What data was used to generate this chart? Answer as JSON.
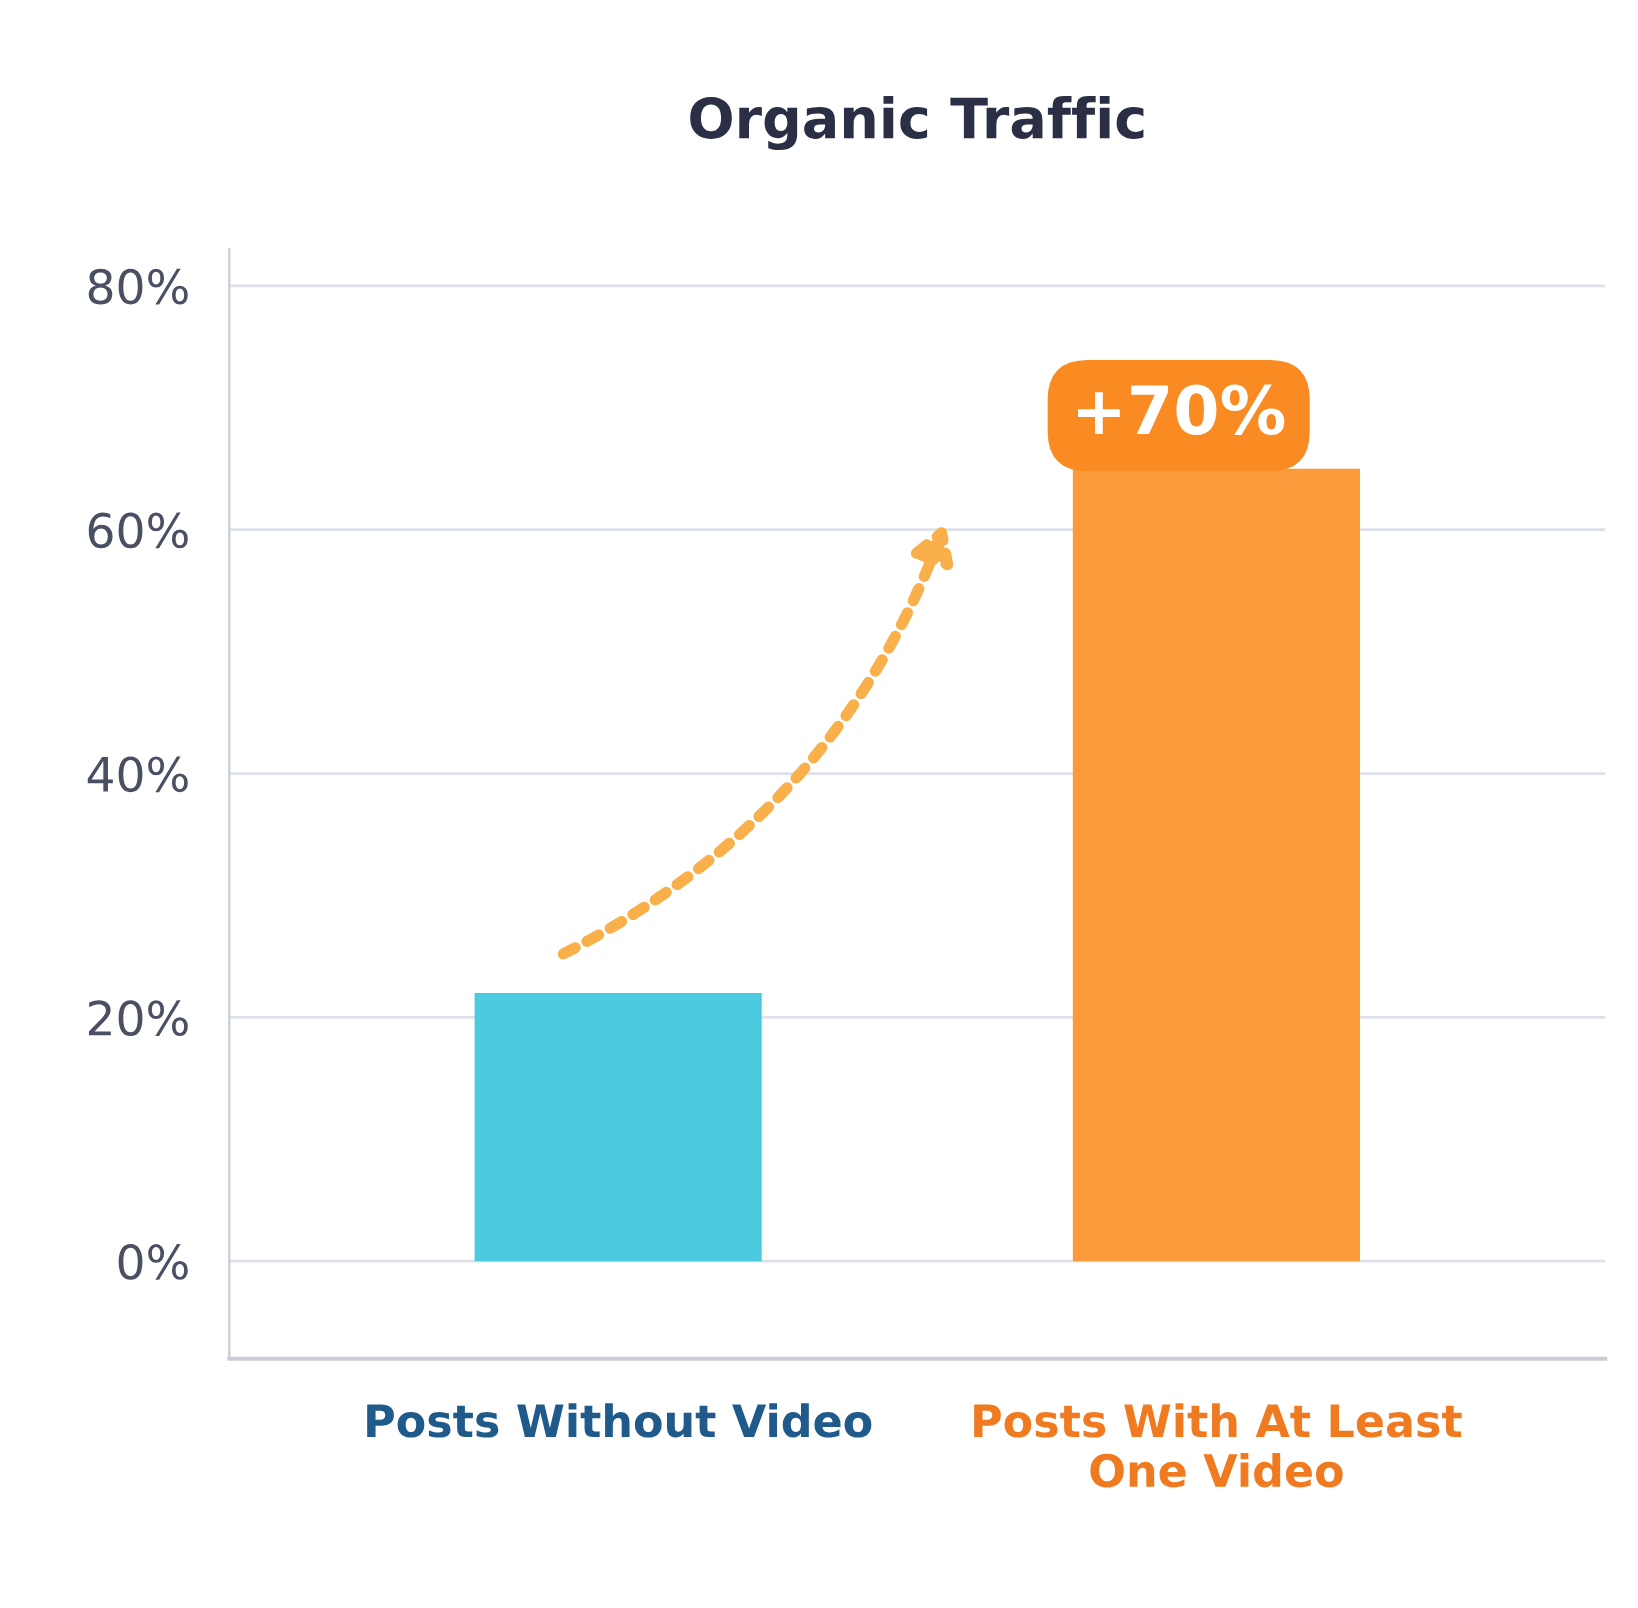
{
  "chart_data": {
    "type": "bar",
    "title": "Organic Traffic",
    "categories": [
      "Posts Without Video",
      "Posts With At Least\nOne Video"
    ],
    "values": [
      22,
      65
    ],
    "colors": [
      "#4ccbe0",
      "#fb9a3a"
    ],
    "ylim": [
      -8,
      83
    ],
    "yticks": [
      {
        "value": 0,
        "label": "0%"
      },
      {
        "value": 20,
        "label": "20%"
      },
      {
        "value": 40,
        "label": "40%"
      },
      {
        "value": 60,
        "label": "60%"
      },
      {
        "value": 80,
        "label": "80%"
      }
    ],
    "grid": "y",
    "annotations": [
      "+70%"
    ]
  }
}
